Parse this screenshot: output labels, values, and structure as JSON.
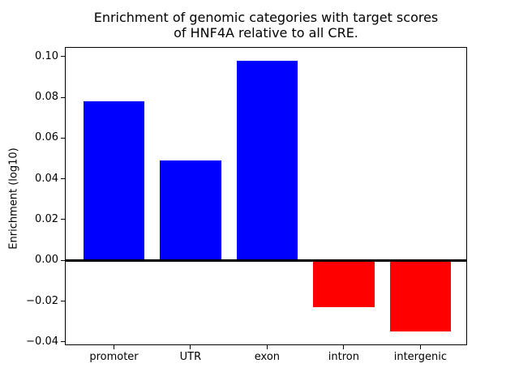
{
  "chart_data": {
    "type": "bar",
    "title": "Enrichment of genomic categories with target scores\nof HNF4A relative to all CRE.",
    "xlabel": "",
    "ylabel": "Enrichment (log10)",
    "categories": [
      "promoter",
      "UTR",
      "exon",
      "intron",
      "intergenic"
    ],
    "values": [
      0.078,
      0.049,
      0.098,
      -0.023,
      -0.035
    ],
    "bar_colors": [
      "#0000ff",
      "#0000ff",
      "#0000ff",
      "#ff0000",
      "#ff0000"
    ],
    "positive_color": "#0000ff",
    "negative_color": "#ff0000",
    "bar_width_fraction": 0.8,
    "ylim": [
      -0.0417,
      0.1047
    ],
    "xlim": [
      -0.64,
      4.61
    ],
    "yticks": [
      0.1,
      0.08,
      0.06,
      0.04,
      0.02,
      0.0,
      -0.02,
      -0.04
    ],
    "ytick_labels": [
      "0.10",
      "0.08",
      "0.06",
      "0.04",
      "0.02",
      "0.00",
      "−0.02",
      "−0.04"
    ],
    "zero_line": true,
    "grid": false,
    "legend": false,
    "axis_color": "#000000",
    "text_color": "#000000",
    "background_color": "#ffffff"
  }
}
